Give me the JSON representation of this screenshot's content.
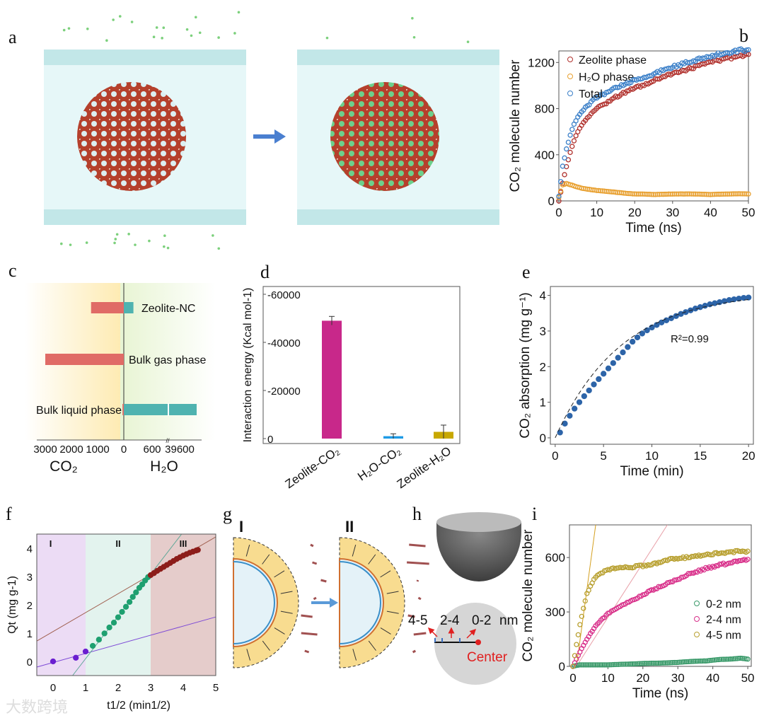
{
  "panel_labels": {
    "a": "a",
    "b": "b",
    "c": "c",
    "d": "d",
    "e": "e",
    "f": "f",
    "g": "g",
    "h": "h",
    "i": "i"
  },
  "watermark": "大数跨境",
  "colors": {
    "zeolite": "#b0302c",
    "h2o": "#e8a030",
    "total": "#3a7fc8",
    "co2_bar": "#e06b66",
    "h2o_bar": "#4fb3b0",
    "d1": "#c8288a",
    "d2": "#1e9be6",
    "d3": "#c8a800",
    "e_pts": "#2d64a8",
    "f1": "#6a1fd0",
    "f2": "#1fa070",
    "f3": "#8c1d1a",
    "i1": "#3a9a6a",
    "i2": "#d8308a",
    "i3": "#b8a030"
  },
  "chart_data": [
    {
      "id": "b",
      "type": "scatter",
      "xlabel": "Time (ns)",
      "ylabel": "CO2 molecule number",
      "xlim": [
        0,
        50
      ],
      "ylim": [
        0,
        1300
      ],
      "xticks": [
        0,
        10,
        20,
        30,
        40,
        50
      ],
      "yticks": [
        0,
        400,
        800,
        1200
      ],
      "legend": "top-left",
      "x": [
        0,
        1,
        2,
        3,
        4,
        5,
        6,
        8,
        10,
        12,
        15,
        18,
        20,
        22,
        25,
        28,
        30,
        32,
        35,
        38,
        40,
        42,
        45,
        48,
        50
      ],
      "series": [
        {
          "name": "Zeolite phase",
          "values": [
            0,
            150,
            300,
            420,
            520,
            600,
            660,
            740,
            800,
            840,
            900,
            950,
            980,
            1000,
            1040,
            1080,
            1100,
            1120,
            1150,
            1180,
            1200,
            1215,
            1240,
            1260,
            1270
          ]
        },
        {
          "name": "H2O phase",
          "values": [
            30,
            140,
            150,
            140,
            130,
            120,
            110,
            100,
            90,
            85,
            75,
            65,
            60,
            60,
            55,
            58,
            60,
            60,
            60,
            58,
            55,
            58,
            60,
            62,
            60
          ]
        },
        {
          "name": "Total",
          "values": [
            40,
            300,
            450,
            570,
            660,
            720,
            770,
            840,
            900,
            930,
            980,
            1020,
            1050,
            1070,
            1100,
            1140,
            1160,
            1180,
            1210,
            1235,
            1250,
            1270,
            1290,
            1305,
            1310
          ]
        }
      ]
    },
    {
      "id": "c",
      "type": "bar",
      "orientation": "horizontal",
      "categories": [
        "Zeolite-NC",
        "Bulk gas phase",
        "Bulk liquid phase"
      ],
      "series": [
        {
          "name": "CO2",
          "values": [
            1250,
            3000,
            50
          ]
        },
        {
          "name": "H2O",
          "values": [
            200,
            0,
            39900
          ]
        }
      ],
      "xticks_left": [
        "3000",
        "2000",
        "1000",
        "0"
      ],
      "xticks_right": [
        "600",
        "39600"
      ],
      "xlabel_left": "CO2",
      "xlabel_right": "H2O",
      "axis_break": "//"
    },
    {
      "id": "d",
      "type": "bar",
      "categories": [
        "Zeolite-CO2",
        "H2O-CO2",
        "Zeolite-H2O"
      ],
      "values": [
        -49000,
        -1000,
        -2800
      ],
      "errors": [
        1800,
        1000,
        2800
      ],
      "ylabel": "Interaction energy (Kcal mol-1)",
      "ylim": [
        0,
        -62000
      ],
      "yticks": [
        "0",
        "-20000",
        "-40000",
        "-60000"
      ]
    },
    {
      "id": "e",
      "type": "scatter",
      "xlabel": "Time (min)",
      "ylabel": "CO2 absorption (mg g-1)",
      "xlim": [
        0,
        20
      ],
      "ylim": [
        0,
        4
      ],
      "xticks": [
        0,
        5,
        10,
        15,
        20
      ],
      "yticks": [
        0,
        1,
        2,
        3,
        4
      ],
      "annotation": "R²=0.99",
      "fit": "dashed",
      "x": [
        0.5,
        1,
        1.5,
        2,
        2.5,
        3,
        3.5,
        4,
        4.5,
        5,
        5.5,
        6,
        6.5,
        7,
        7.5,
        8,
        8.5,
        9,
        9.5,
        10,
        10.5,
        11,
        11.5,
        12,
        12.5,
        13,
        13.5,
        14,
        14.5,
        15,
        15.5,
        16,
        16.5,
        17,
        17.5,
        18,
        18.5,
        19,
        19.5,
        20
      ],
      "values": [
        0.15,
        0.4,
        0.62,
        0.82,
        1.0,
        1.17,
        1.33,
        1.5,
        1.65,
        1.8,
        1.95,
        2.1,
        2.25,
        2.4,
        2.55,
        2.7,
        2.82,
        2.93,
        3.02,
        3.1,
        3.17,
        3.24,
        3.3,
        3.36,
        3.42,
        3.48,
        3.53,
        3.58,
        3.63,
        3.67,
        3.71,
        3.75,
        3.78,
        3.81,
        3.84,
        3.87,
        3.89,
        3.91,
        3.93,
        3.94
      ]
    },
    {
      "id": "f",
      "type": "scatter",
      "xlabel": "t1/2 (min1/2)",
      "ylabel": "Qt (mg g-1)",
      "xlim": [
        -0.5,
        5
      ],
      "ylim": [
        -0.5,
        4.5
      ],
      "xticks": [
        0,
        1,
        2,
        3,
        4,
        5
      ],
      "yticks": [
        0,
        1,
        2,
        3,
        4
      ],
      "regions": [
        "I",
        "II",
        "III"
      ],
      "series": [
        {
          "name": "I",
          "x": [
            0,
            0.7,
            1.0
          ],
          "values": [
            0,
            0.13,
            0.35
          ]
        },
        {
          "name": "II",
          "x": [
            1.22,
            1.41,
            1.58,
            1.73,
            1.87,
            2.0,
            2.12,
            2.24,
            2.35,
            2.45,
            2.55,
            2.65,
            2.74,
            2.83,
            2.92
          ],
          "values": [
            0.55,
            0.77,
            0.99,
            1.2,
            1.37,
            1.56,
            1.75,
            1.93,
            2.1,
            2.28,
            2.44,
            2.6,
            2.72,
            2.86,
            2.98
          ]
        },
        {
          "name": "III",
          "x": [
            3.0,
            3.1,
            3.2,
            3.3,
            3.4,
            3.5,
            3.6,
            3.7,
            3.8,
            3.9,
            4.0,
            4.1,
            4.2,
            4.3,
            4.4,
            4.45
          ],
          "values": [
            3.05,
            3.12,
            3.2,
            3.27,
            3.34,
            3.41,
            3.48,
            3.55,
            3.62,
            3.68,
            3.74,
            3.79,
            3.84,
            3.88,
            3.92,
            3.94
          ]
        }
      ],
      "fit_lines": [
        {
          "x": [
            -0.5,
            5
          ],
          "y": [
            -0.2,
            1.57
          ]
        },
        {
          "x": [
            -0.5,
            5
          ],
          "y": [
            0.72,
            4.4
          ]
        },
        {
          "x": [
            0.6,
            3.95
          ],
          "y": [
            -0.5,
            4.5
          ]
        }
      ]
    },
    {
      "id": "i",
      "type": "scatter",
      "xlabel": "Time (ns)",
      "ylabel": "CO2 molecule number",
      "xlim": [
        0,
        50
      ],
      "ylim": [
        0,
        780
      ],
      "xticks": [
        0,
        10,
        20,
        30,
        40,
        50
      ],
      "yticks": [
        0,
        300,
        600
      ],
      "legend": "right",
      "x": [
        0,
        1,
        2,
        3,
        4,
        5,
        6,
        7,
        8,
        10,
        12,
        15,
        18,
        20,
        22,
        25,
        28,
        30,
        32,
        35,
        38,
        40,
        42,
        45,
        48,
        50
      ],
      "series": [
        {
          "name": "0-2 nm",
          "values": [
            0,
            5,
            8,
            8,
            8,
            8,
            8,
            8,
            8,
            8,
            10,
            12,
            14,
            16,
            17,
            18,
            20,
            22,
            25,
            28,
            30,
            34,
            38,
            40,
            45,
            40
          ]
        },
        {
          "name": "2-4 nm",
          "values": [
            0,
            40,
            80,
            115,
            150,
            180,
            210,
            235,
            255,
            290,
            315,
            345,
            375,
            395,
            415,
            440,
            465,
            480,
            500,
            520,
            540,
            548,
            560,
            570,
            580,
            590
          ]
        },
        {
          "name": "4-5 nm",
          "values": [
            0,
            120,
            230,
            320,
            400,
            440,
            480,
            500,
            515,
            530,
            540,
            545,
            550,
            555,
            560,
            575,
            590,
            595,
            600,
            605,
            615,
            620,
            625,
            630,
            635,
            635
          ]
        }
      ]
    }
  ],
  "a": {},
  "g": {
    "stage1": "I",
    "stage2": "II"
  },
  "h": {
    "zone1": "4-5",
    "zone2": "2-4",
    "zone3": "0-2",
    "unit": "nm",
    "center": "Center"
  }
}
